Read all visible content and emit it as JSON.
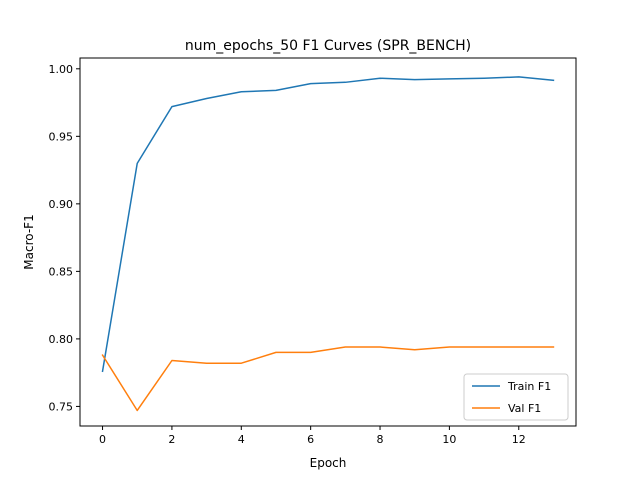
{
  "chart_data": {
    "type": "line",
    "title": "num_epochs_50 F1 Curves (SPR_BENCH)",
    "xlabel": "Epoch",
    "ylabel": "Macro-F1",
    "xlim": [
      -0.65,
      13.65
    ],
    "ylim": [
      0.7355,
      1.008
    ],
    "xticks": [
      0,
      2,
      4,
      6,
      8,
      10,
      12
    ],
    "yticks": [
      0.75,
      0.8,
      0.85,
      0.9,
      0.95,
      1.0
    ],
    "ytick_labels": [
      "0.75",
      "0.80",
      "0.85",
      "0.90",
      "0.95",
      "1.00"
    ],
    "grid": false,
    "legend_position": "lower-right",
    "x": [
      0,
      1,
      2,
      3,
      4,
      5,
      6,
      7,
      8,
      9,
      10,
      11,
      12,
      13
    ],
    "series": [
      {
        "name": "Train F1",
        "color": "#1f77b4",
        "values": [
          0.776,
          0.93,
          0.972,
          0.978,
          0.983,
          0.984,
          0.989,
          0.99,
          0.993,
          0.992,
          0.9925,
          0.993,
          0.994,
          0.9915
        ]
      },
      {
        "name": "Val F1",
        "color": "#ff7f0e",
        "values": [
          0.788,
          0.747,
          0.784,
          0.782,
          0.782,
          0.79,
          0.79,
          0.794,
          0.794,
          0.792,
          0.794,
          0.794,
          0.794,
          0.794
        ]
      }
    ]
  }
}
